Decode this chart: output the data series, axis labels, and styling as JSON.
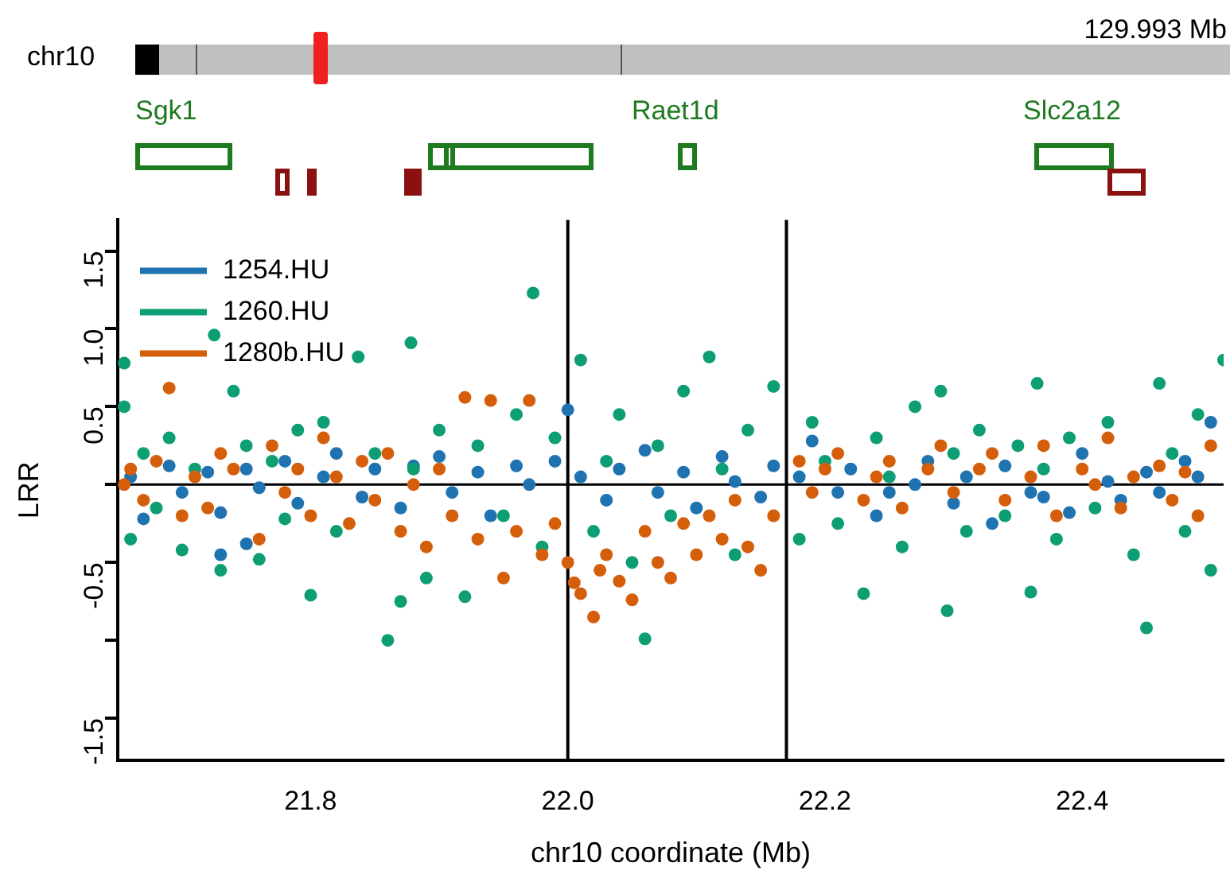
{
  "chart_data": {
    "type": "scatter",
    "xlabel": "chr10 coordinate (Mb)",
    "ylabel": "LRR",
    "annotations": [
      "chr10",
      "129.993 Mb",
      "Sgk1",
      "Raet1d",
      "Slc2a12"
    ],
    "xlim": [
      21.65,
      22.51
    ],
    "xticks": [
      {
        "value": 21.8,
        "label": "21.8"
      },
      {
        "value": 22.0,
        "label": "22.0"
      },
      {
        "value": 22.2,
        "label": "22.2"
      },
      {
        "value": 22.4,
        "label": "22.4"
      }
    ],
    "ylim": [
      -1.77,
      1.7
    ],
    "yticks": [
      {
        "value": -1.5,
        "label": "-1.5"
      },
      {
        "value": -1.0,
        "label": null
      },
      {
        "value": -0.5,
        "label": "-0.5"
      },
      {
        "value": 0,
        "label": null
      },
      {
        "value": 0.5,
        "label": "0.5"
      },
      {
        "value": 1.0,
        "label": "1.0"
      },
      {
        "value": 1.5,
        "label": "1.5"
      }
    ],
    "grid": false,
    "legend": "top left",
    "marker": "circle",
    "ref_lines": [
      {
        "axis": "x",
        "value": 22.0,
        "label": null,
        "color": "#000000"
      },
      {
        "axis": "x",
        "value": 22.17,
        "label": null,
        "color": "#000000"
      },
      {
        "axis": "y",
        "value": 0,
        "label": null,
        "color": "#000000"
      }
    ],
    "series": [
      {
        "name": "1254.HU",
        "color": "#1f73b0",
        "x": [
          21.66,
          21.67,
          21.69,
          21.7,
          21.72,
          21.73,
          21.73,
          21.75,
          21.75,
          21.76,
          21.78,
          21.79,
          21.81,
          21.82,
          21.84,
          21.85,
          21.87,
          21.88,
          21.9,
          21.91,
          21.93,
          21.94,
          21.96,
          21.97,
          21.99,
          22.0,
          22.01,
          22.03,
          22.04,
          22.06,
          22.07,
          22.09,
          22.1,
          22.12,
          22.13,
          22.15,
          22.16,
          22.18,
          22.19,
          22.21,
          22.22,
          22.24,
          22.25,
          22.27,
          22.28,
          22.3,
          22.31,
          22.33,
          22.34,
          22.36,
          22.37,
          22.39,
          22.4,
          22.42,
          22.43,
          22.45,
          22.46,
          22.48,
          22.49,
          22.5
        ],
        "values": [
          0.05,
          -0.22,
          0.12,
          -0.05,
          0.08,
          -0.18,
          -0.45,
          0.1,
          -0.38,
          -0.02,
          0.15,
          -0.12,
          0.05,
          0.2,
          -0.08,
          0.1,
          -0.15,
          0.12,
          0.18,
          -0.05,
          0.08,
          -0.2,
          0.12,
          0.0,
          0.15,
          0.48,
          0.05,
          -0.1,
          0.1,
          0.22,
          -0.05,
          0.08,
          -0.15,
          0.18,
          0.02,
          -0.08,
          0.12,
          0.05,
          0.28,
          -0.05,
          0.1,
          -0.2,
          -0.05,
          0.0,
          0.15,
          -0.12,
          0.05,
          -0.25,
          0.12,
          -0.05,
          -0.08,
          -0.18,
          0.2,
          0.02,
          -0.1,
          0.08,
          -0.05,
          0.15,
          0.05,
          0.4
        ]
      },
      {
        "name": "1260.HU",
        "color": "#0e9e74",
        "x": [
          21.655,
          21.655,
          21.66,
          21.67,
          21.68,
          21.69,
          21.7,
          21.71,
          21.725,
          21.73,
          21.74,
          21.75,
          21.76,
          21.77,
          21.78,
          21.79,
          21.8,
          21.81,
          21.82,
          21.837,
          21.85,
          21.86,
          21.87,
          21.878,
          21.88,
          21.89,
          21.9,
          21.92,
          21.93,
          21.95,
          21.96,
          21.973,
          21.98,
          21.99,
          22.01,
          22.02,
          22.03,
          22.04,
          22.05,
          22.06,
          22.07,
          22.08,
          22.09,
          22.11,
          22.12,
          22.13,
          22.14,
          22.16,
          22.18,
          22.19,
          22.2,
          22.21,
          22.23,
          22.24,
          22.25,
          22.26,
          22.27,
          22.29,
          22.295,
          22.3,
          22.31,
          22.32,
          22.34,
          22.35,
          22.36,
          22.365,
          22.37,
          22.38,
          22.39,
          22.41,
          22.42,
          22.44,
          22.45,
          22.46,
          22.47,
          22.48,
          22.49,
          22.5,
          22.51
        ],
        "values": [
          0.78,
          0.5,
          -0.35,
          0.2,
          -0.15,
          0.3,
          -0.42,
          0.1,
          0.96,
          -0.55,
          0.6,
          0.25,
          -0.48,
          0.15,
          -0.22,
          0.35,
          -0.71,
          0.4,
          -0.3,
          0.82,
          0.2,
          -1.0,
          -0.75,
          0.91,
          0.1,
          -0.6,
          0.35,
          -0.72,
          0.25,
          -0.2,
          0.45,
          1.23,
          -0.4,
          0.3,
          0.8,
          -0.3,
          0.15,
          0.45,
          -0.5,
          -0.99,
          0.25,
          -0.2,
          0.6,
          0.82,
          0.1,
          -0.45,
          0.35,
          0.63,
          -0.35,
          0.4,
          0.15,
          -0.25,
          -0.7,
          0.3,
          0.05,
          -0.4,
          0.5,
          0.6,
          -0.81,
          0.2,
          -0.3,
          0.35,
          -0.2,
          0.25,
          -0.69,
          0.65,
          0.1,
          -0.35,
          0.3,
          -0.15,
          0.4,
          -0.45,
          -0.92,
          0.65,
          0.2,
          -0.3,
          0.45,
          -0.55,
          0.8
        ]
      },
      {
        "name": "1280b.HU",
        "color": "#d55e0a",
        "x": [
          21.655,
          21.66,
          21.67,
          21.68,
          21.69,
          21.7,
          21.71,
          21.72,
          21.73,
          21.74,
          21.76,
          21.77,
          21.78,
          21.79,
          21.8,
          21.81,
          21.82,
          21.83,
          21.84,
          21.85,
          21.86,
          21.87,
          21.88,
          21.89,
          21.9,
          21.91,
          21.92,
          21.93,
          21.94,
          21.95,
          21.96,
          21.97,
          21.98,
          21.99,
          22.0,
          22.005,
          22.01,
          22.02,
          22.025,
          22.03,
          22.04,
          22.05,
          22.06,
          22.07,
          22.08,
          22.09,
          22.1,
          22.11,
          22.12,
          22.13,
          22.14,
          22.15,
          22.16,
          22.18,
          22.19,
          22.2,
          22.21,
          22.23,
          22.24,
          22.25,
          22.26,
          22.28,
          22.29,
          22.3,
          22.32,
          22.33,
          22.34,
          22.36,
          22.37,
          22.38,
          22.4,
          22.41,
          22.42,
          22.43,
          22.44,
          22.46,
          22.47,
          22.48,
          22.49,
          22.5
        ],
        "values": [
          0.0,
          0.1,
          -0.1,
          0.15,
          0.62,
          -0.2,
          0.05,
          -0.15,
          0.2,
          0.1,
          -0.35,
          0.25,
          -0.05,
          0.1,
          -0.2,
          0.3,
          0.05,
          -0.25,
          0.15,
          -0.1,
          0.2,
          -0.3,
          0.0,
          -0.4,
          0.1,
          -0.2,
          0.56,
          -0.35,
          0.54,
          -0.6,
          -0.3,
          0.54,
          -0.45,
          -0.25,
          -0.5,
          -0.63,
          -0.7,
          -0.85,
          -0.55,
          -0.45,
          -0.62,
          -0.74,
          -0.3,
          -0.5,
          -0.6,
          -0.25,
          -0.45,
          -0.2,
          -0.35,
          -0.1,
          -0.4,
          -0.55,
          -0.2,
          0.15,
          -0.05,
          0.1,
          0.2,
          -0.1,
          0.05,
          0.15,
          -0.15,
          0.1,
          0.25,
          -0.05,
          0.1,
          0.2,
          -0.1,
          0.05,
          0.25,
          -0.2,
          0.1,
          0.0,
          0.3,
          -0.15,
          0.05,
          0.12,
          -0.1,
          0.08,
          -0.2,
          0.25
        ]
      }
    ]
  }
}
